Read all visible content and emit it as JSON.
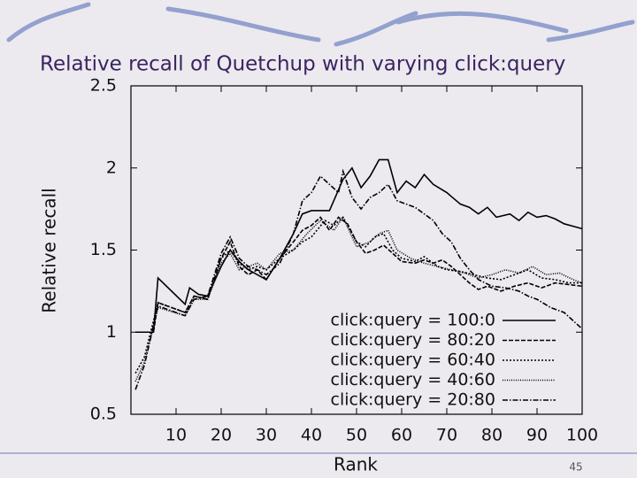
{
  "chart_data": {
    "type": "line",
    "title": "Relative recall of Quetchup with varying click:query",
    "xlabel": "Rank",
    "ylabel": "Relative recall",
    "xlim": [
      0,
      100
    ],
    "xticks": [
      10,
      20,
      30,
      40,
      50,
      60,
      70,
      80,
      90,
      100
    ],
    "ylim": [
      0.5,
      2.5
    ],
    "yticks": [
      0.5,
      1,
      1.5,
      2,
      2.5
    ],
    "grid": false,
    "legend": "lower right",
    "series": [
      {
        "name": "click:query = 100:0",
        "color": "#000000",
        "dash": "none",
        "x": [
          1,
          5,
          6,
          12,
          13,
          15,
          17,
          20,
          22,
          24,
          26,
          28,
          30,
          33,
          36,
          38,
          40,
          44,
          47,
          49,
          51,
          53,
          55,
          57,
          59,
          61,
          63,
          65,
          67,
          70,
          73,
          75,
          77,
          79,
          81,
          84,
          86,
          88,
          90,
          92,
          94,
          96,
          100
        ],
        "values": [
          1.0,
          1.0,
          1.33,
          1.17,
          1.27,
          1.23,
          1.22,
          1.4,
          1.5,
          1.43,
          1.38,
          1.35,
          1.32,
          1.45,
          1.6,
          1.72,
          1.74,
          1.74,
          1.93,
          2.0,
          1.88,
          1.95,
          2.05,
          2.05,
          1.85,
          1.92,
          1.88,
          1.96,
          1.9,
          1.85,
          1.78,
          1.76,
          1.72,
          1.76,
          1.7,
          1.72,
          1.68,
          1.73,
          1.7,
          1.71,
          1.69,
          1.66,
          1.63
        ]
      },
      {
        "name": "click:query = 80:20",
        "color": "#000000",
        "dash": "5,2",
        "x": [
          1,
          5,
          6,
          12,
          14,
          17,
          20,
          22,
          24,
          26,
          28,
          30,
          33,
          36,
          38,
          40,
          42,
          44,
          46,
          48,
          50,
          52,
          54,
          56,
          58,
          60,
          63,
          65,
          67,
          69,
          71,
          73,
          75,
          77,
          79,
          82,
          85,
          88,
          91,
          94,
          97,
          100
        ],
        "values": [
          1.0,
          1.0,
          1.18,
          1.12,
          1.22,
          1.2,
          1.45,
          1.55,
          1.4,
          1.35,
          1.38,
          1.32,
          1.45,
          1.55,
          1.62,
          1.65,
          1.7,
          1.62,
          1.7,
          1.66,
          1.55,
          1.48,
          1.5,
          1.53,
          1.48,
          1.43,
          1.42,
          1.44,
          1.42,
          1.44,
          1.4,
          1.35,
          1.3,
          1.26,
          1.28,
          1.25,
          1.28,
          1.3,
          1.27,
          1.3,
          1.29,
          1.28
        ]
      },
      {
        "name": "click:query = 60:40",
        "color": "#000000",
        "dash": "2,2",
        "x": [
          1,
          3,
          6,
          12,
          14,
          17,
          20,
          22,
          24,
          26,
          28,
          30,
          33,
          36,
          38,
          40,
          43,
          45,
          47,
          50,
          52,
          54,
          56,
          58,
          60,
          63,
          65,
          68,
          70,
          73,
          76,
          79,
          82,
          85,
          88,
          91,
          94,
          97,
          100
        ],
        "values": [
          0.75,
          0.85,
          1.18,
          1.12,
          1.22,
          1.2,
          1.45,
          1.5,
          1.42,
          1.38,
          1.4,
          1.38,
          1.45,
          1.5,
          1.55,
          1.58,
          1.68,
          1.65,
          1.7,
          1.55,
          1.52,
          1.58,
          1.6,
          1.5,
          1.45,
          1.43,
          1.46,
          1.4,
          1.38,
          1.37,
          1.35,
          1.33,
          1.32,
          1.35,
          1.38,
          1.33,
          1.32,
          1.3,
          1.3
        ]
      },
      {
        "name": "click:query = 40:60",
        "color": "#000000",
        "dash": "1,1.5",
        "x": [
          1,
          3,
          6,
          12,
          14,
          17,
          20,
          22,
          24,
          26,
          28,
          30,
          33,
          36,
          39,
          42,
          45,
          47,
          50,
          53,
          55,
          57,
          59,
          62,
          65,
          68,
          71,
          74,
          77,
          80,
          83,
          86,
          89,
          92,
          95,
          98,
          100
        ],
        "values": [
          0.7,
          0.82,
          1.15,
          1.1,
          1.2,
          1.2,
          1.42,
          1.48,
          1.38,
          1.4,
          1.42,
          1.38,
          1.48,
          1.5,
          1.6,
          1.68,
          1.62,
          1.7,
          1.52,
          1.55,
          1.6,
          1.62,
          1.5,
          1.45,
          1.42,
          1.4,
          1.38,
          1.36,
          1.33,
          1.35,
          1.38,
          1.36,
          1.4,
          1.35,
          1.36,
          1.32,
          1.3
        ]
      },
      {
        "name": "click:query = 20:80",
        "color": "#000000",
        "dash": "6,2,1.5,2",
        "x": [
          1,
          3,
          6,
          12,
          14,
          17,
          20,
          22,
          24,
          26,
          28,
          30,
          33,
          36,
          38,
          40,
          42,
          44,
          46,
          47,
          49,
          51,
          53,
          55,
          57,
          59,
          61,
          63,
          65,
          67,
          69,
          71,
          73,
          75,
          77,
          80,
          83,
          86,
          88,
          90,
          93,
          96,
          100
        ],
        "values": [
          0.65,
          0.8,
          1.16,
          1.1,
          1.2,
          1.22,
          1.48,
          1.58,
          1.45,
          1.4,
          1.38,
          1.35,
          1.42,
          1.6,
          1.8,
          1.85,
          1.95,
          1.9,
          1.85,
          1.98,
          1.82,
          1.75,
          1.82,
          1.85,
          1.9,
          1.8,
          1.78,
          1.76,
          1.72,
          1.68,
          1.6,
          1.55,
          1.45,
          1.38,
          1.32,
          1.28,
          1.27,
          1.25,
          1.22,
          1.2,
          1.15,
          1.12,
          1.02
        ]
      }
    ]
  },
  "slide": {
    "page_number": "45"
  }
}
